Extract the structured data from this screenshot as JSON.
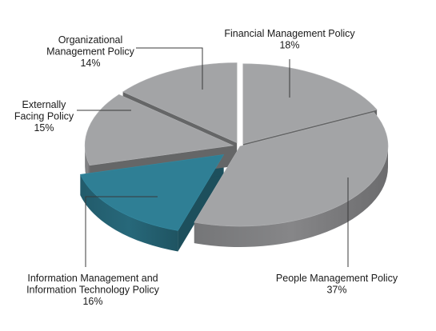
{
  "chart_data": {
    "type": "pie",
    "style": "3d-exploded",
    "slices": [
      {
        "label_lines": [
          "Financial Management Policy"
        ],
        "percent_text": "18%",
        "value": 18,
        "color": "#a3a4a6"
      },
      {
        "label_lines": [
          "People Management Policy"
        ],
        "percent_text": "37%",
        "value": 37,
        "color": "#a3a4a6"
      },
      {
        "label_lines": [
          "Information Management and",
          "Information Technology Policy"
        ],
        "percent_text": "16%",
        "value": 16,
        "color": "#2f7f95"
      },
      {
        "label_lines": [
          "Externally",
          "Facing Policy"
        ],
        "percent_text": "15%",
        "value": 15,
        "color": "#a3a4a6"
      },
      {
        "label_lines": [
          "Organizational",
          "Management Policy"
        ],
        "percent_text": "14%",
        "value": 14,
        "color": "#a3a4a6"
      }
    ]
  }
}
